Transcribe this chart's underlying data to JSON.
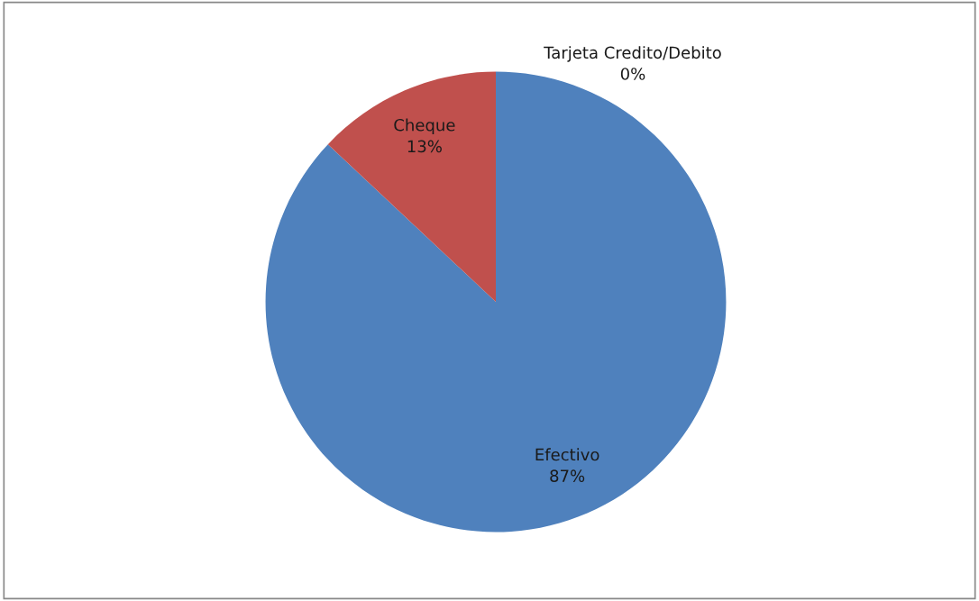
{
  "chart_data": {
    "type": "pie",
    "categories": [
      "Efectivo",
      "Cheque",
      "Tarjeta Credito/Debito"
    ],
    "values": [
      87,
      13,
      0
    ],
    "colors": [
      "#4f81bd",
      "#c0504d",
      "#9bbb59"
    ],
    "value_labels": [
      "87%",
      "13%",
      "0%"
    ],
    "legend": false
  }
}
